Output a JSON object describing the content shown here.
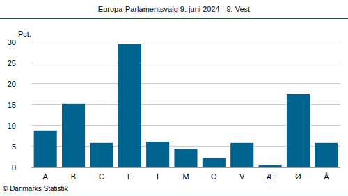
{
  "chart_data": {
    "type": "bar",
    "title": "Europa-Parlamentsvalg 9. juni 2024 - 9. Vest",
    "y_label": "Pct.",
    "categories": [
      "A",
      "B",
      "C",
      "F",
      "I",
      "M",
      "O",
      "V",
      "Æ",
      "Ø",
      "Å"
    ],
    "values": [
      8.7,
      15.2,
      5.7,
      29.5,
      6.0,
      4.3,
      2.0,
      5.7,
      0.5,
      17.5,
      5.7
    ],
    "color": "#00628f",
    "ylim": [
      0,
      30
    ],
    "yticks": [
      0,
      5,
      10,
      15,
      20,
      25,
      30
    ],
    "grid": true,
    "source": "© Danmarks Statistik"
  }
}
